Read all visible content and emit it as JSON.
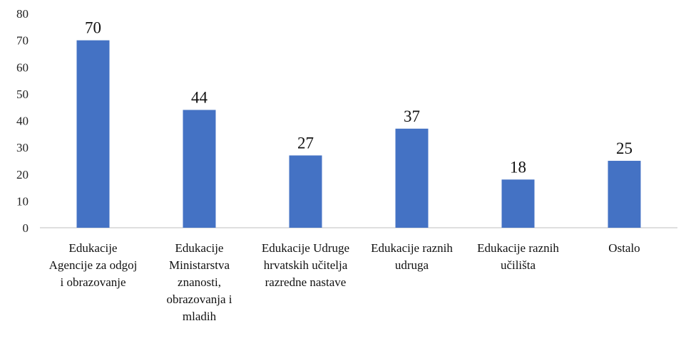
{
  "chart_data": {
    "type": "bar",
    "categories": [
      "Edukacije Agencije za odgoj i obrazovanje",
      "Edukacije Ministarstva znanosti, obrazovanja i mladih",
      "Edukacije Udruge hrvatskih učitelja razredne nastave",
      "Edukacije raznih udruga",
      "Edukacije raznih učilišta",
      "Ostalo"
    ],
    "values": [
      70,
      44,
      27,
      37,
      18,
      25
    ],
    "color": "#4472c4",
    "ylim": [
      0,
      80
    ],
    "yticks": [
      0,
      10,
      20,
      30,
      40,
      50,
      60,
      70,
      80
    ],
    "grid": false
  }
}
